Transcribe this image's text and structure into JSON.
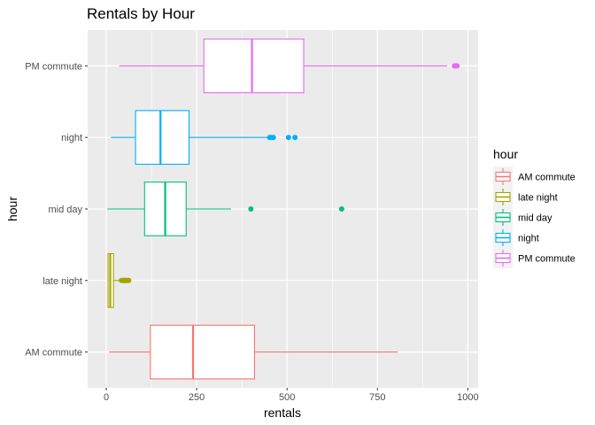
{
  "chart_data": {
    "type": "boxplot",
    "orientation": "horizontal",
    "title": "Rentals by Hour",
    "xlabel": "rentals",
    "ylabel": "hour",
    "xlim": [
      -45,
      1005
    ],
    "xticks": [
      0,
      250,
      500,
      750,
      1000
    ],
    "xtick_labels": [
      "0",
      "250",
      "500",
      "750",
      "1000"
    ],
    "grid": true,
    "legend": {
      "title": "hour",
      "position": "right",
      "entries": [
        "AM commute",
        "late night",
        "mid day",
        "night",
        "PM commute"
      ]
    },
    "categories": [
      "AM commute",
      "late night",
      "mid day",
      "night",
      "PM commute"
    ],
    "series": [
      {
        "name": "AM commute",
        "color": "#F8766D",
        "min": 8,
        "q1": 122,
        "median": 240,
        "q3": 410,
        "max": 806,
        "outliers": []
      },
      {
        "name": "late night",
        "color": "#A3A500",
        "min": 3,
        "q1": 5,
        "median": 11,
        "q3": 20,
        "max": 40,
        "outliers": [
          42,
          45,
          48,
          50,
          52,
          55,
          57,
          60,
          62
        ]
      },
      {
        "name": "mid day",
        "color": "#00BF7D",
        "min": 3,
        "q1": 106,
        "median": 163,
        "q3": 221,
        "max": 345,
        "outliers": [
          400,
          651
        ]
      },
      {
        "name": "night",
        "color": "#00B0F6",
        "min": 13,
        "q1": 81,
        "median": 150,
        "q3": 229,
        "max": 448,
        "outliers": [
          452,
          457,
          462,
          504,
          522
        ]
      },
      {
        "name": "PM commute",
        "color": "#E76BF3",
        "min": 36,
        "q1": 270,
        "median": 403,
        "q3": 546,
        "max": 943,
        "outliers": [
          963,
          967,
          970
        ]
      }
    ]
  }
}
